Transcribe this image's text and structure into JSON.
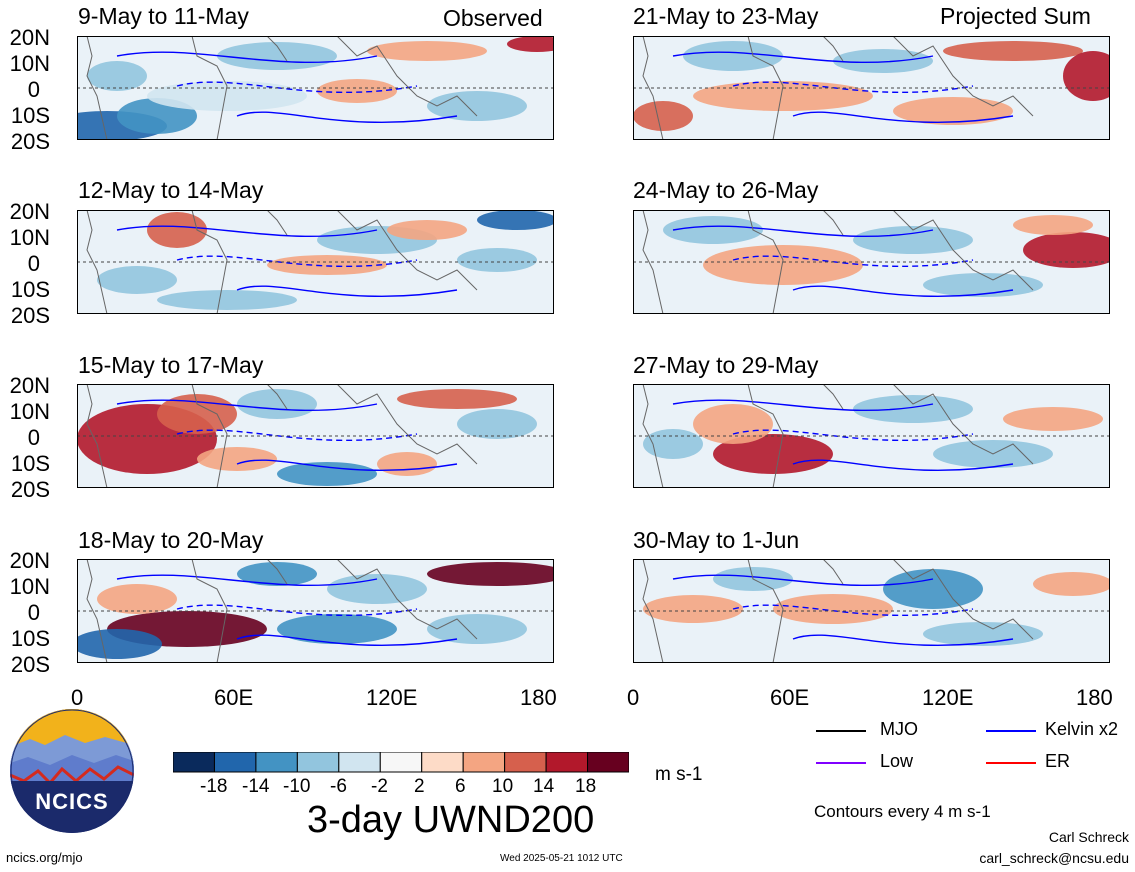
{
  "header": {
    "left_label": "Observed",
    "right_label": "Projected Sum"
  },
  "panels": {
    "left": [
      "9-May to 11-May",
      "12-May to 14-May",
      "15-May to 17-May",
      "18-May to 20-May"
    ],
    "right": [
      "21-May to 23-May",
      "24-May to 26-May",
      "27-May to 29-May",
      "30-May to 1-Jun"
    ]
  },
  "axes": {
    "lat_labels": [
      "20N",
      "10N",
      "0",
      "10S",
      "20S"
    ],
    "lon_labels": [
      "0",
      "60E",
      "120E",
      "180"
    ]
  },
  "colorbar": {
    "tick_labels": [
      "-18",
      "-14",
      "-10",
      "-6",
      "-2",
      "2",
      "6",
      "10",
      "14",
      "18"
    ],
    "units": "m s-1",
    "colors": [
      "#0a2a5c",
      "#2166ac",
      "#4393c3",
      "#92c5de",
      "#d1e5f0",
      "#f7f7f7",
      "#fddbc7",
      "#f4a582",
      "#d6604d",
      "#b2182b",
      "#67001f"
    ]
  },
  "legend": {
    "items": [
      {
        "label": "MJO",
        "color": "#000000"
      },
      {
        "label": "Kelvin x2",
        "color": "#0000ff"
      },
      {
        "label": "Low",
        "color": "#8000ff"
      },
      {
        "label": "ER",
        "color": "#ff0000"
      }
    ],
    "contour_note": "Contours every 4 m s-1"
  },
  "footer": {
    "main_title": "3-day UWND200",
    "url": "ncics.org/mjo",
    "timestamp": "Wed 2025-05-21 1012 UTC",
    "author": "Carl Schreck",
    "email": "carl_schreck@ncsu.edu",
    "logo_text": "NCICS"
  }
}
